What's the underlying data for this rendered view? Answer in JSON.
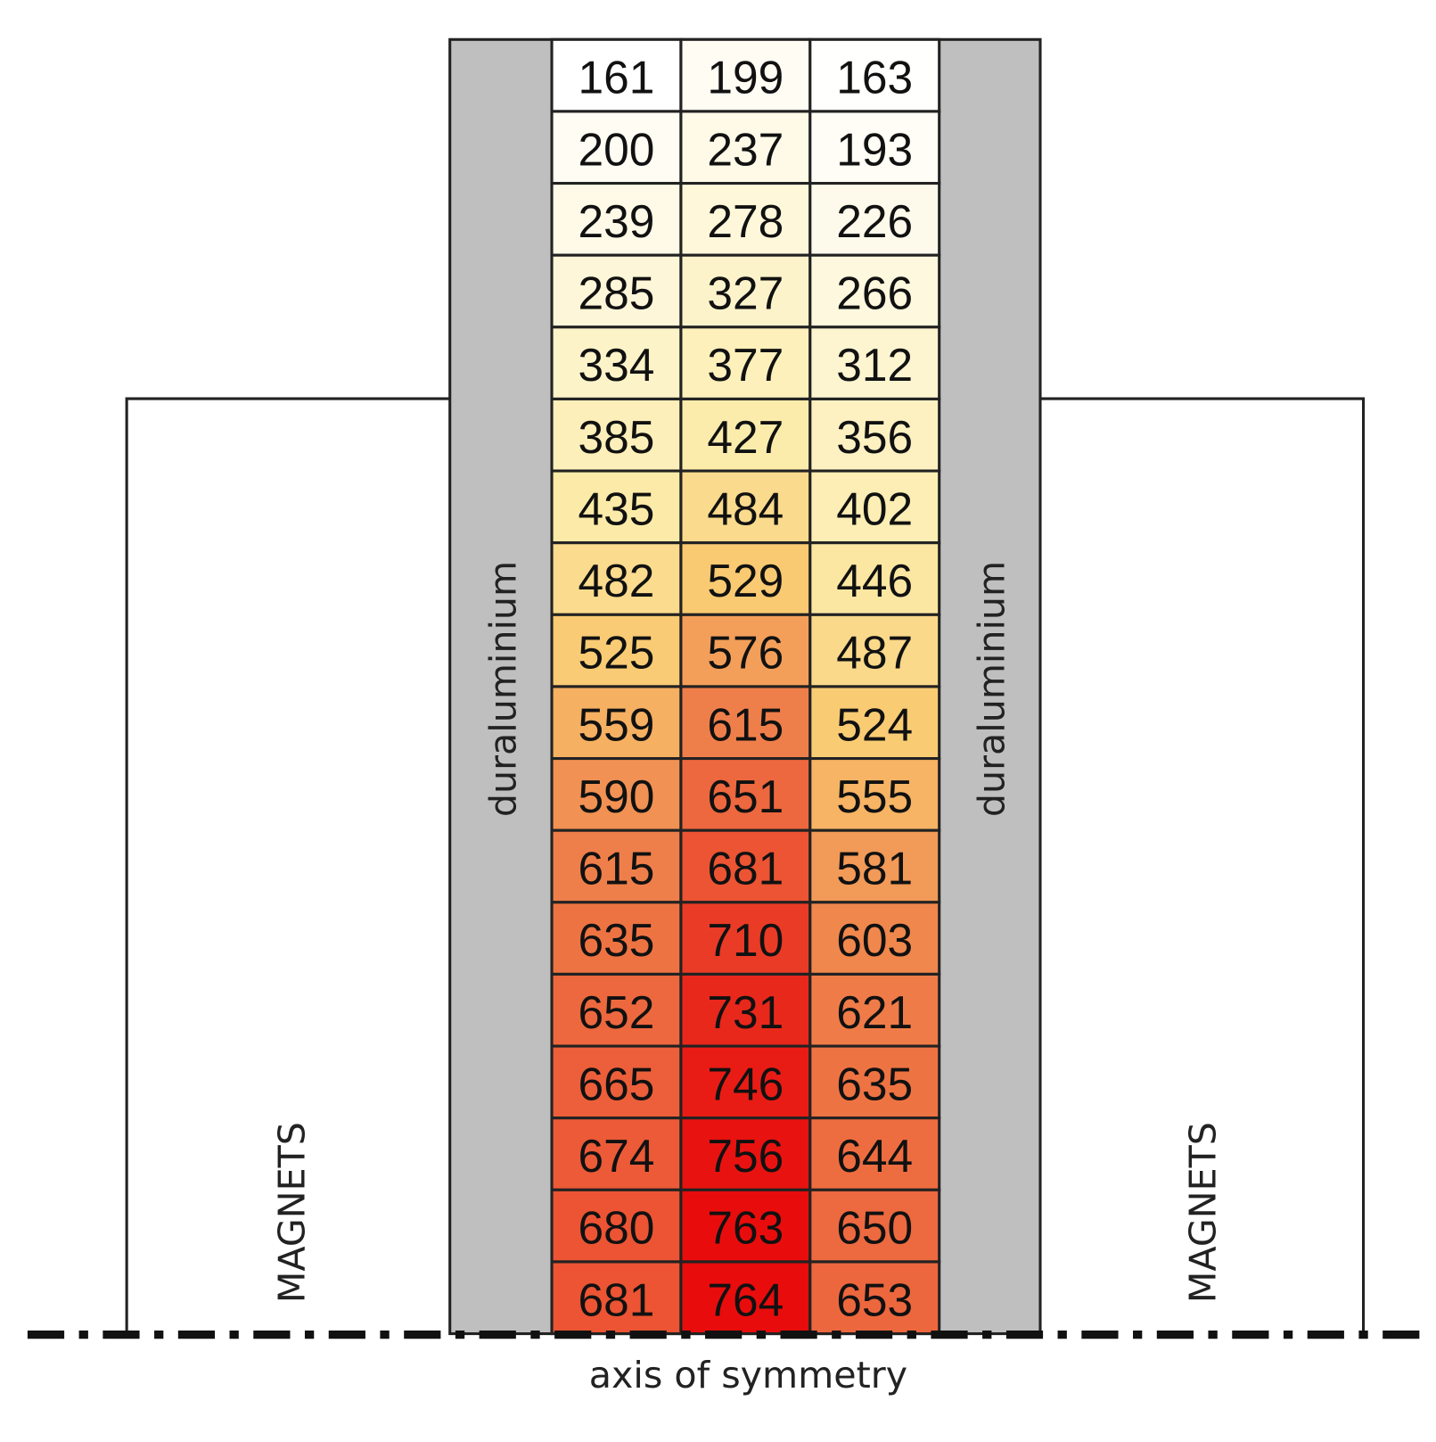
{
  "labels": {
    "left_material": "duraluminium",
    "right_material": "duraluminium",
    "left_magnets": "MAGNETS",
    "right_magnets": "MAGNETS",
    "axis": "axis of symmetry"
  },
  "table": {
    "rows": [
      [
        161,
        199,
        163
      ],
      [
        200,
        237,
        193
      ],
      [
        239,
        278,
        226
      ],
      [
        285,
        327,
        266
      ],
      [
        334,
        377,
        312
      ],
      [
        385,
        427,
        356
      ],
      [
        435,
        484,
        402
      ],
      [
        482,
        529,
        446
      ],
      [
        525,
        576,
        487
      ],
      [
        559,
        615,
        524
      ],
      [
        590,
        651,
        555
      ],
      [
        615,
        681,
        581
      ],
      [
        635,
        710,
        603
      ],
      [
        652,
        731,
        621
      ],
      [
        665,
        746,
        635
      ],
      [
        674,
        756,
        644
      ],
      [
        680,
        763,
        650
      ],
      [
        681,
        764,
        653
      ]
    ]
  }
}
